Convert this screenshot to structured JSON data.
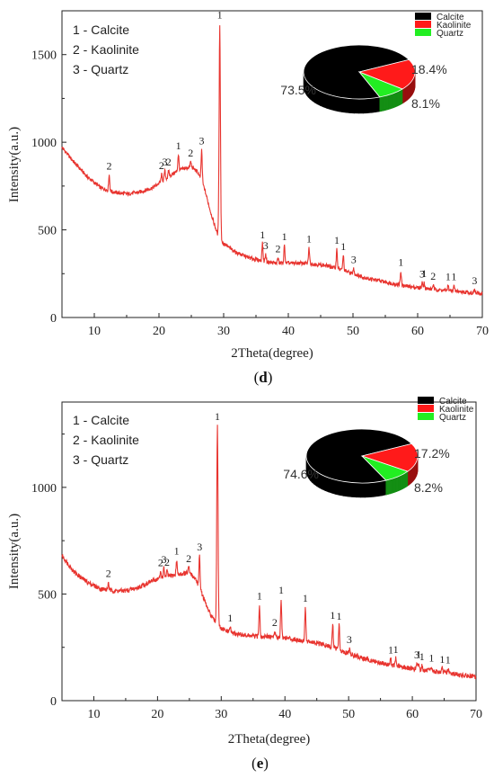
{
  "chart_data": [
    {
      "type": "line",
      "panel_label": "(d)",
      "xlabel": "2Theta(degree)",
      "ylabel": "Intensity(a.u.)",
      "xlim": [
        5,
        70
      ],
      "ylim": [
        0,
        1750
      ],
      "xticks": [
        10,
        20,
        30,
        40,
        50,
        60,
        70
      ],
      "yticks": [
        0,
        500,
        1000,
        1500
      ],
      "grid": false,
      "line_color": "#e8342f",
      "legend": [
        "1 - Calcite",
        "2 - Kaolinite",
        "3 - Quartz"
      ],
      "legend_position": "top-left",
      "baseline": [
        [
          5,
          970
        ],
        [
          7,
          880
        ],
        [
          9,
          800
        ],
        [
          11,
          740
        ],
        [
          13,
          715
        ],
        [
          15,
          705
        ],
        [
          17,
          715
        ],
        [
          19,
          740
        ],
        [
          21,
          790
        ],
        [
          23,
          840
        ],
        [
          25,
          860
        ],
        [
          26,
          830
        ],
        [
          27,
          740
        ],
        [
          28,
          600
        ],
        [
          29,
          480
        ],
        [
          30,
          420
        ],
        [
          32,
          370
        ],
        [
          34,
          340
        ],
        [
          36,
          322
        ],
        [
          38,
          310
        ],
        [
          40,
          310
        ],
        [
          42,
          310
        ],
        [
          44,
          305
        ],
        [
          46,
          295
        ],
        [
          48,
          275
        ],
        [
          50,
          250
        ],
        [
          52,
          225
        ],
        [
          54,
          210
        ],
        [
          56,
          195
        ],
        [
          58,
          180
        ],
        [
          60,
          170
        ],
        [
          62,
          162
        ],
        [
          64,
          155
        ],
        [
          66,
          150
        ],
        [
          68,
          142
        ],
        [
          70,
          135
        ]
      ],
      "peaks": [
        {
          "x": 12.3,
          "h": 90,
          "label": "2"
        },
        {
          "x": 20.4,
          "h": 40,
          "label": "2"
        },
        {
          "x": 20.9,
          "h": 50,
          "label": "3"
        },
        {
          "x": 21.5,
          "h": 35,
          "label": "2"
        },
        {
          "x": 23.0,
          "h": 90,
          "label": "1"
        },
        {
          "x": 24.9,
          "h": 30,
          "label": "2"
        },
        {
          "x": 26.6,
          "h": 180,
          "label": "3"
        },
        {
          "x": 29.4,
          "h": 1220,
          "label": "1"
        },
        {
          "x": 36.0,
          "h": 100,
          "label": "1"
        },
        {
          "x": 36.5,
          "h": 40,
          "label": "3"
        },
        {
          "x": 38.4,
          "h": 30,
          "label": "2"
        },
        {
          "x": 39.4,
          "h": 100,
          "label": "1"
        },
        {
          "x": 43.2,
          "h": 90,
          "label": "1"
        },
        {
          "x": 47.5,
          "h": 110,
          "label": "1"
        },
        {
          "x": 48.5,
          "h": 85,
          "label": "1"
        },
        {
          "x": 50.1,
          "h": 30,
          "label": "3"
        },
        {
          "x": 57.4,
          "h": 80,
          "label": "1"
        },
        {
          "x": 60.7,
          "h": 30,
          "label": "3"
        },
        {
          "x": 61.0,
          "h": 35,
          "label": "1"
        },
        {
          "x": 62.4,
          "h": 25,
          "label": "2"
        },
        {
          "x": 64.7,
          "h": 30,
          "label": "1"
        },
        {
          "x": 65.6,
          "h": 30,
          "label": "1"
        },
        {
          "x": 68.8,
          "h": 20,
          "label": "3"
        }
      ],
      "pie": {
        "slices": [
          {
            "name": "Calcite",
            "value": 73.5,
            "label": "73.5%",
            "color": "#000000"
          },
          {
            "name": "Kaolinite",
            "value": 18.4,
            "label": "18.4%",
            "color": "#ff1a1a"
          },
          {
            "name": "Quartz",
            "value": 8.1,
            "label": "8.1%",
            "color": "#22ee22"
          }
        ]
      }
    },
    {
      "type": "line",
      "panel_label": "(e)",
      "xlabel": "2Theta(degree)",
      "ylabel": "Intensity(a.u.)",
      "xlim": [
        5,
        70
      ],
      "ylim": [
        0,
        1400
      ],
      "xticks": [
        10,
        20,
        30,
        40,
        50,
        60,
        70
      ],
      "yticks": [
        0,
        500,
        1000
      ],
      "grid": false,
      "line_color": "#e8342f",
      "legend": [
        "1 - Calcite",
        "2 - Kaolinite",
        "3 - Quartz"
      ],
      "legend_position": "top-left",
      "baseline": [
        [
          5,
          680
        ],
        [
          7,
          600
        ],
        [
          9,
          555
        ],
        [
          11,
          525
        ],
        [
          13,
          515
        ],
        [
          15,
          515
        ],
        [
          17,
          530
        ],
        [
          19,
          560
        ],
        [
          21,
          580
        ],
        [
          23,
          590
        ],
        [
          25,
          600
        ],
        [
          26,
          570
        ],
        [
          27,
          500
        ],
        [
          28,
          420
        ],
        [
          29,
          370
        ],
        [
          30,
          335
        ],
        [
          32,
          315
        ],
        [
          34,
          305
        ],
        [
          36,
          300
        ],
        [
          38,
          300
        ],
        [
          40,
          295
        ],
        [
          42,
          285
        ],
        [
          44,
          275
        ],
        [
          46,
          262
        ],
        [
          48,
          245
        ],
        [
          50,
          220
        ],
        [
          52,
          200
        ],
        [
          54,
          185
        ],
        [
          56,
          170
        ],
        [
          58,
          160
        ],
        [
          60,
          150
        ],
        [
          62,
          142
        ],
        [
          64,
          135
        ],
        [
          66,
          128
        ],
        [
          68,
          118
        ],
        [
          70,
          110
        ]
      ],
      "peaks": [
        {
          "x": 12.3,
          "h": 35,
          "label": "2"
        },
        {
          "x": 20.5,
          "h": 30,
          "label": "2"
        },
        {
          "x": 21.0,
          "h": 40,
          "label": "3"
        },
        {
          "x": 21.5,
          "h": 25,
          "label": "2"
        },
        {
          "x": 23.0,
          "h": 70,
          "label": "1"
        },
        {
          "x": 24.9,
          "h": 25,
          "label": "2"
        },
        {
          "x": 26.6,
          "h": 150,
          "label": "3"
        },
        {
          "x": 29.4,
          "h": 935,
          "label": "1"
        },
        {
          "x": 31.4,
          "h": 25,
          "label": "1"
        },
        {
          "x": 36.0,
          "h": 150,
          "label": "1"
        },
        {
          "x": 38.4,
          "h": 25,
          "label": "2"
        },
        {
          "x": 39.4,
          "h": 180,
          "label": "1"
        },
        {
          "x": 43.2,
          "h": 160,
          "label": "1"
        },
        {
          "x": 47.5,
          "h": 110,
          "label": "1"
        },
        {
          "x": 48.5,
          "h": 115,
          "label": "1"
        },
        {
          "x": 50.1,
          "h": 25,
          "label": "3"
        },
        {
          "x": 56.6,
          "h": 30,
          "label": "1"
        },
        {
          "x": 57.4,
          "h": 35,
          "label": "1"
        },
        {
          "x": 60.7,
          "h": 25,
          "label": "3"
        },
        {
          "x": 61.0,
          "h": 30,
          "label": "1"
        },
        {
          "x": 61.5,
          "h": 20,
          "label": "1"
        },
        {
          "x": 63.0,
          "h": 20,
          "label": "1"
        },
        {
          "x": 64.7,
          "h": 20,
          "label": "1"
        },
        {
          "x": 65.6,
          "h": 20,
          "label": "1"
        }
      ],
      "pie": {
        "slices": [
          {
            "name": "Calcite",
            "value": 74.6,
            "label": "74.6%",
            "color": "#000000"
          },
          {
            "name": "Kaolinite",
            "value": 17.2,
            "label": "17.2%",
            "color": "#ff1a1a"
          },
          {
            "name": "Quartz",
            "value": 8.2,
            "label": "8.2%",
            "color": "#22ee22"
          }
        ]
      }
    }
  ]
}
